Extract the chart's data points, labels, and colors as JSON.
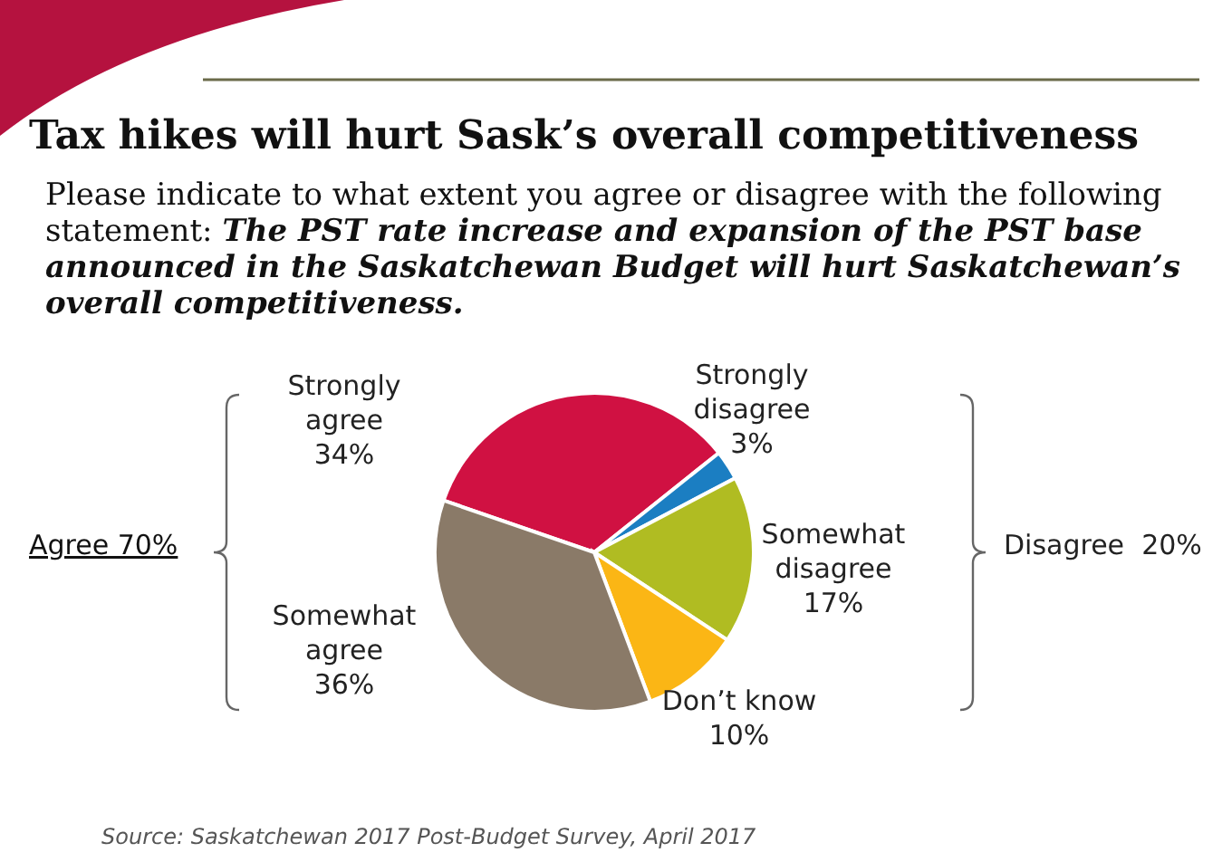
{
  "chart_data": {
    "type": "pie",
    "title": "Tax hikes will hurt Sask’s overall competitiveness",
    "subtitle": "Please indicate to what extent you agree or disagree with the following statement: The PST rate increase and expansion of the PST base announced in the Saskatchewan Budget will hurt Saskatchewan’s overall competitiveness.",
    "categories": [
      "Strongly agree",
      "Strongly disagree",
      "Somewhat disagree",
      "Don’t know",
      "Somewhat agree"
    ],
    "values": [
      34,
      3,
      17,
      10,
      36
    ],
    "colors": [
      "#d01142",
      "#1b7ec2",
      "#b0bc22",
      "#fbb615",
      "#8a7a68"
    ],
    "value_labels": [
      "34%",
      "3%",
      "17%",
      "10%",
      "36%"
    ],
    "annotations": [
      "Agree 70%",
      "Disagree  20%",
      "Source: Saskatchewan 2017 Post-Budget Survey, April 2017"
    ]
  }
}
